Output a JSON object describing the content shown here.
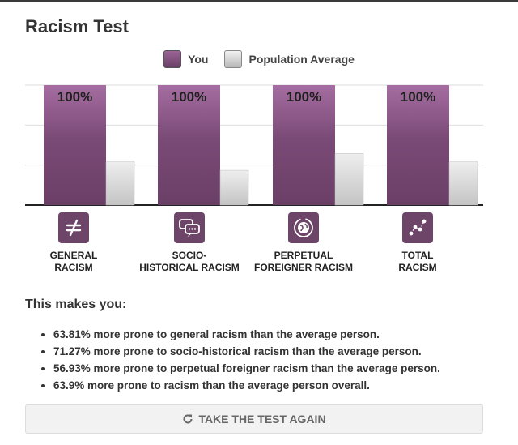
{
  "page": {
    "title": "Racism Test"
  },
  "legend": {
    "you": "You",
    "population": "Population Average"
  },
  "colors": {
    "you_top": "#9b6597",
    "you_bottom": "#6a3f66",
    "pop_top": "#ececec",
    "pop_bottom": "#c6c6c6",
    "icon_bg": "#6d4569"
  },
  "chart_data": {
    "type": "bar",
    "categories": [
      "GENERAL RACISM",
      "SOCIO-HISTORICAL RACISM",
      "PERPETUAL FOREIGNER RACISM",
      "TOTAL RACISM"
    ],
    "series": [
      {
        "name": "You",
        "values": [
          100,
          100,
          100,
          100
        ]
      },
      {
        "name": "Population Average",
        "values": [
          36,
          29,
          43,
          36
        ]
      }
    ],
    "data_labels": [
      "100%",
      "100%",
      "100%",
      "100%"
    ],
    "ylim": [
      0,
      100
    ],
    "grid": true,
    "legend_position": "top-center",
    "title": "",
    "xlabel": "",
    "ylabel": ""
  },
  "categories": [
    {
      "label": "GENERAL\nRACISM",
      "icon": "not-equal-icon"
    },
    {
      "label": "SOCIO-\nHISTORICAL RACISM",
      "icon": "chat-bubbles-icon"
    },
    {
      "label": "PERPETUAL\nFOREIGNER RACISM",
      "icon": "globe-icon"
    },
    {
      "label": "TOTAL\nRACISM",
      "icon": "network-icon"
    }
  ],
  "results": {
    "heading": "This makes you:",
    "items": [
      "63.81% more prone to general racism than the average person.",
      "71.27% more prone to socio-historical racism than the average person.",
      "56.93% more prone to perpetual foreigner racism than the average person.",
      "63.9% more prone to racism than the average person overall."
    ]
  },
  "retake": {
    "label": "TAKE THE TEST AGAIN",
    "icon": "refresh-icon"
  }
}
